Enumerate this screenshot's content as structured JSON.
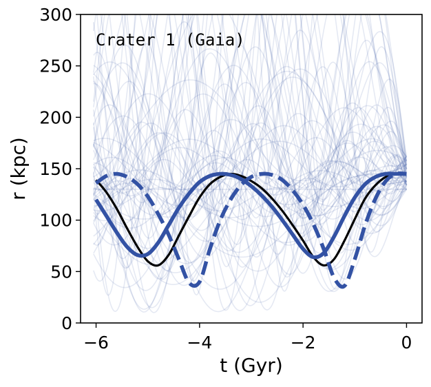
{
  "chart_data": {
    "type": "line",
    "title": "",
    "annotation": "Crater 1 (Gaia)",
    "xlabel": "t (Gyr)",
    "ylabel": "r (kpc)",
    "xlim": [
      -6.3,
      0.3
    ],
    "ylim": [
      0,
      300
    ],
    "xticks": [
      -6,
      -4,
      -2,
      0
    ],
    "xtick_labels": [
      "−6",
      "−4",
      "−2",
      "0"
    ],
    "yticks": [
      0,
      50,
      100,
      150,
      200,
      250,
      300
    ],
    "ytick_labels": [
      "0",
      "50",
      "100",
      "150",
      "200",
      "250",
      "300"
    ],
    "colors": {
      "fiducial": "#000000",
      "variant": "#3352a4",
      "ensemble": "#3352a4"
    },
    "series": [
      {
        "name": "fiducial orbit",
        "style": "solid-black",
        "x": [
          -6.0,
          -5.8,
          -5.6,
          -5.4,
          -5.2,
          -5.0,
          -4.8,
          -4.6,
          -4.4,
          -4.2,
          -4.0,
          -3.8,
          -3.6,
          -3.4,
          -3.2,
          -3.0,
          -2.8,
          -2.6,
          -2.4,
          -2.2,
          -2.0,
          -1.8,
          -1.6,
          -1.4,
          -1.2,
          -1.0,
          -0.8,
          -0.6,
          -0.4,
          -0.2,
          0.0
        ],
        "values": [
          139,
          127,
          111,
          92,
          74,
          60,
          56,
          66,
          85,
          104,
          122,
          135,
          142,
          145,
          143,
          138,
          131,
          121,
          109,
          95,
          80,
          64,
          56,
          62,
          80,
          101,
          121,
          134,
          142,
          145,
          145
        ]
      },
      {
        "name": "variant orbit (solid)",
        "style": "solid-blue",
        "x": [
          -6.0,
          -5.8,
          -5.6,
          -5.4,
          -5.2,
          -5.0,
          -4.8,
          -4.6,
          -4.4,
          -4.2,
          -4.0,
          -3.8,
          -3.6,
          -3.4,
          -3.2,
          -3.0,
          -2.8,
          -2.6,
          -2.4,
          -2.2,
          -2.0,
          -1.8,
          -1.6,
          -1.4,
          -1.2,
          -1.0,
          -0.8,
          -0.6,
          -0.4,
          -0.2,
          0.0
        ],
        "values": [
          120,
          104,
          88,
          74,
          66,
          67,
          78,
          95,
          112,
          126,
          137,
          143,
          145,
          144,
          140,
          133,
          124,
          113,
          100,
          86,
          72,
          64,
          68,
          84,
          104,
          122,
          135,
          142,
          145,
          145,
          145
        ]
      },
      {
        "name": "variant orbit (dashed)",
        "style": "dashed-blue",
        "x": [
          -6.0,
          -5.8,
          -5.6,
          -5.4,
          -5.2,
          -5.0,
          -4.8,
          -4.6,
          -4.4,
          -4.2,
          -4.0,
          -3.8,
          -3.6,
          -3.4,
          -3.2,
          -3.0,
          -2.8,
          -2.6,
          -2.4,
          -2.2,
          -2.0,
          -1.8,
          -1.6,
          -1.4,
          -1.2,
          -1.0,
          -0.8,
          -0.6,
          -0.4,
          -0.2,
          0.0
        ],
        "values": [
          136,
          143,
          145,
          142,
          135,
          123,
          106,
          86,
          62,
          39,
          40,
          72,
          100,
          120,
          134,
          142,
          145,
          144,
          139,
          129,
          115,
          96,
          72,
          44,
          36,
          62,
          95,
          121,
          138,
          145,
          145
        ]
      }
    ],
    "ensemble_note": "faint background orbit ensemble"
  }
}
